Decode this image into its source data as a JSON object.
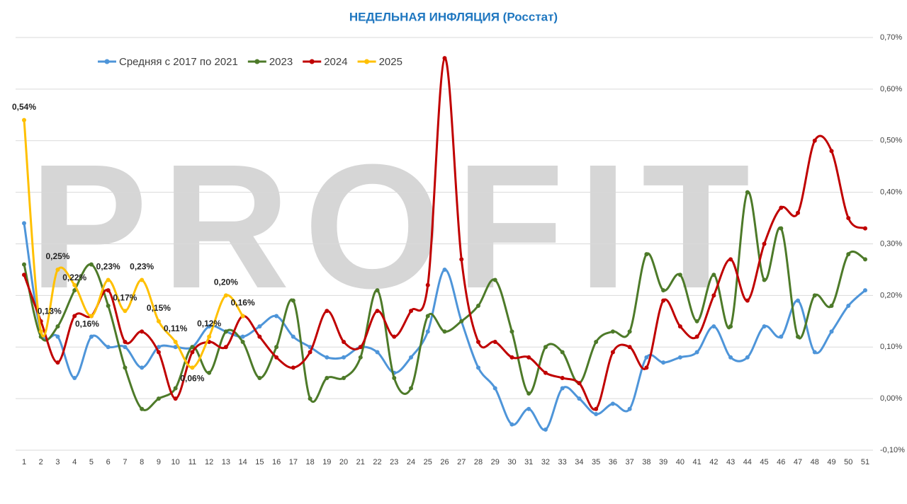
{
  "chart_data": {
    "type": "line",
    "title": "НЕДЕЛЬНАЯ ИНФЛЯЦИЯ (Росстат)",
    "watermark": "PROFIT",
    "categories": [
      1,
      2,
      3,
      4,
      5,
      6,
      7,
      8,
      9,
      10,
      11,
      12,
      13,
      14,
      15,
      16,
      17,
      18,
      19,
      20,
      21,
      22,
      23,
      24,
      25,
      26,
      27,
      28,
      29,
      30,
      31,
      32,
      33,
      34,
      35,
      36,
      37,
      38,
      39,
      40,
      41,
      42,
      43,
      44,
      45,
      46,
      47,
      48,
      49,
      50,
      51
    ],
    "series": [
      {
        "name": "Средняя с 2017 по 2021",
        "color": "#4e95d9",
        "values": [
          0.34,
          0.13,
          0.12,
          0.04,
          0.12,
          0.1,
          0.1,
          0.06,
          0.1,
          0.1,
          0.1,
          0.14,
          0.13,
          0.12,
          0.14,
          0.16,
          0.12,
          0.1,
          0.08,
          0.08,
          0.1,
          0.09,
          0.05,
          0.08,
          0.13,
          0.25,
          0.15,
          0.06,
          0.02,
          -0.05,
          -0.02,
          -0.06,
          0.02,
          0.0,
          -0.03,
          -0.01,
          -0.02,
          0.08,
          0.07,
          0.08,
          0.09,
          0.14,
          0.08,
          0.08,
          0.14,
          0.12,
          0.19,
          0.09,
          0.13,
          0.18,
          0.21
        ]
      },
      {
        "name": "2023",
        "color": "#4d7a29",
        "values": [
          0.26,
          0.12,
          0.14,
          0.21,
          0.26,
          0.18,
          0.06,
          -0.02,
          0.0,
          0.02,
          0.1,
          0.05,
          0.13,
          0.11,
          0.04,
          0.1,
          0.19,
          0.0,
          0.04,
          0.04,
          0.08,
          0.21,
          0.04,
          0.02,
          0.16,
          0.13,
          0.15,
          0.18,
          0.23,
          0.13,
          0.01,
          0.1,
          0.09,
          0.03,
          0.11,
          0.13,
          0.13,
          0.28,
          0.21,
          0.24,
          0.15,
          0.24,
          0.14,
          0.4,
          0.23,
          0.33,
          0.12,
          0.2,
          0.18,
          0.28,
          0.27
        ]
      },
      {
        "name": "2024",
        "color": "#c00000",
        "values": [
          0.24,
          0.15,
          0.07,
          0.16,
          0.16,
          0.21,
          0.11,
          0.13,
          0.09,
          0.0,
          0.09,
          0.11,
          0.1,
          0.16,
          0.12,
          0.08,
          0.06,
          0.09,
          0.17,
          0.11,
          0.1,
          0.17,
          0.12,
          0.17,
          0.22,
          0.66,
          0.27,
          0.11,
          0.11,
          0.08,
          0.08,
          0.05,
          0.04,
          0.03,
          -0.02,
          0.09,
          0.1,
          0.06,
          0.19,
          0.14,
          0.12,
          0.2,
          0.27,
          0.19,
          0.3,
          0.37,
          0.36,
          0.5,
          0.48,
          0.35,
          0.33
        ]
      },
      {
        "name": "2025",
        "color": "#ffc000",
        "values": [
          0.54,
          0.13,
          0.25,
          0.22,
          0.16,
          0.23,
          0.17,
          0.23,
          0.15,
          0.11,
          0.06,
          0.12,
          0.2,
          0.16,
          null,
          null,
          null,
          null,
          null,
          null,
          null,
          null,
          null,
          null,
          null,
          null,
          null,
          null,
          null,
          null,
          null,
          null,
          null,
          null,
          null,
          null,
          null,
          null,
          null,
          null,
          null,
          null,
          null,
          null,
          null,
          null,
          null,
          null,
          null,
          null,
          null
        ],
        "value_labels": [
          "0,54%",
          "0,13%",
          "0,25%",
          "0,22%",
          "0,16%",
          "0,23%",
          "0,17%",
          "0,23%",
          "0,15%",
          "0,11%",
          "0,06%",
          "0,12%",
          "0,20%",
          "0,16%",
          null,
          null,
          null,
          null,
          null,
          null,
          null,
          null,
          null,
          null,
          null,
          null,
          null,
          null,
          null,
          null,
          null,
          null,
          null,
          null,
          null,
          null,
          null,
          null,
          null,
          null,
          null,
          null,
          null,
          null,
          null,
          null,
          null,
          null,
          null,
          null,
          null
        ]
      }
    ],
    "ylim": [
      -0.1,
      0.7
    ],
    "yticks": [
      {
        "value": -0.1,
        "label": "-0,10%"
      },
      {
        "value": 0,
        "label": "0,00%"
      },
      {
        "value": 0.1,
        "label": "0,10%"
      },
      {
        "value": 0.2,
        "label": "0,20%"
      },
      {
        "value": 0.3,
        "label": "0,30%"
      },
      {
        "value": 0.4,
        "label": "0,40%"
      },
      {
        "value": 0.5,
        "label": "0,50%"
      },
      {
        "value": 0.6,
        "label": "0,60%"
      },
      {
        "value": 0.7,
        "label": "0,70%"
      }
    ],
    "grid": true,
    "legend": "top-left"
  }
}
